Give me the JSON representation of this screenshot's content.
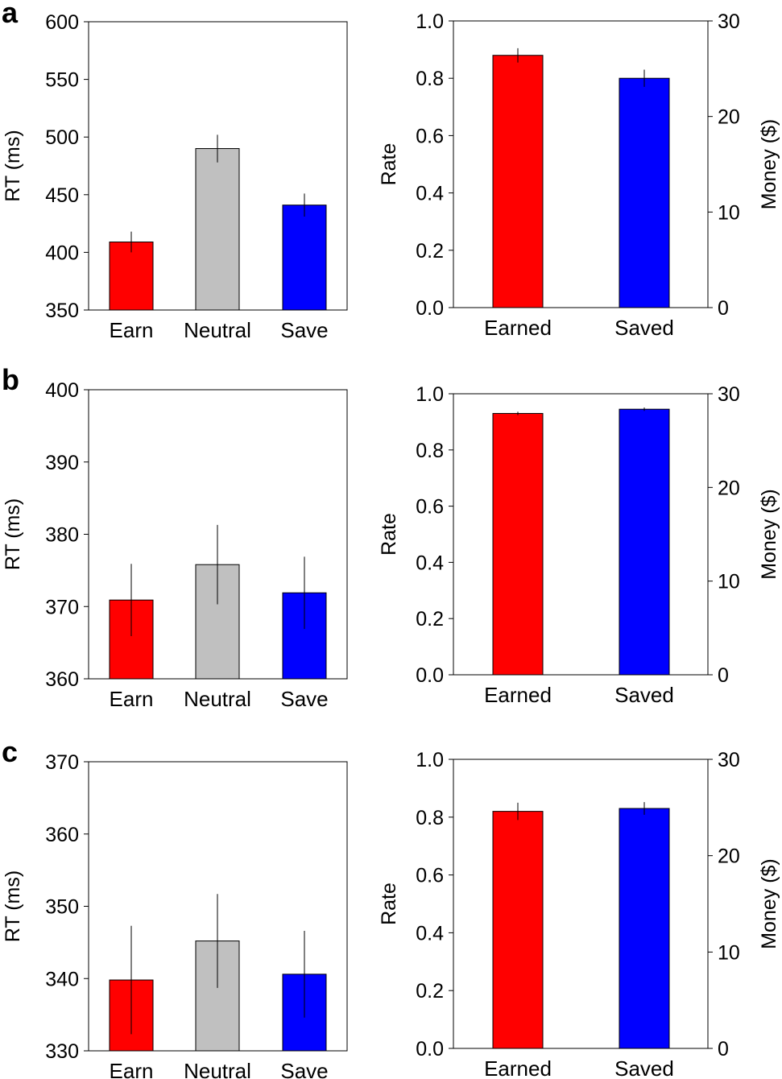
{
  "chart_data": [
    {
      "panel": "a",
      "type": "bar",
      "ylabel": "RT (ms)",
      "categories": [
        "Earn",
        "Neutral",
        "Save"
      ],
      "values": [
        409,
        490,
        441
      ],
      "errors": [
        9,
        12,
        10
      ],
      "colors": [
        "#ff0000",
        "#c0c0c0",
        "#0000ff"
      ],
      "ylim": [
        350,
        600
      ],
      "yticks": [
        "350",
        "400",
        "450",
        "500",
        "550",
        "600"
      ]
    },
    {
      "panel": "a",
      "type": "bar",
      "ylabel": "Rate",
      "y2label": "Money ($)",
      "categories": [
        "Earned",
        "Saved"
      ],
      "values": [
        0.88,
        0.8
      ],
      "errors": [
        0.025,
        0.03
      ],
      "colors": [
        "#ff0000",
        "#0000ff"
      ],
      "ylim": [
        0,
        1.0
      ],
      "yticks": [
        "0.0",
        "0.2",
        "0.4",
        "0.6",
        "0.8",
        "1.0"
      ],
      "y2lim": [
        0,
        30
      ],
      "y2ticks": [
        "0",
        "10",
        "20",
        "30"
      ]
    },
    {
      "panel": "b",
      "type": "bar",
      "ylabel": "RT (ms)",
      "categories": [
        "Earn",
        "Neutral",
        "Save"
      ],
      "values": [
        370.9,
        375.8,
        371.9
      ],
      "errors": [
        5,
        5.5,
        5
      ],
      "colors": [
        "#ff0000",
        "#c0c0c0",
        "#0000ff"
      ],
      "ylim": [
        360,
        400
      ],
      "yticks": [
        "360",
        "370",
        "380",
        "390",
        "400"
      ]
    },
    {
      "panel": "b",
      "type": "bar",
      "ylabel": "Rate",
      "y2label": "Money ($)",
      "categories": [
        "Earned",
        "Saved"
      ],
      "values": [
        0.93,
        0.945
      ],
      "errors": [
        0.006,
        0.006
      ],
      "colors": [
        "#ff0000",
        "#0000ff"
      ],
      "ylim": [
        0,
        1.0
      ],
      "yticks": [
        "0.0",
        "0.2",
        "0.4",
        "0.6",
        "0.8",
        "1.0"
      ],
      "y2lim": [
        0,
        30
      ],
      "y2ticks": [
        "0",
        "10",
        "20",
        "30"
      ]
    },
    {
      "panel": "c",
      "type": "bar",
      "ylabel": "RT (ms)",
      "categories": [
        "Earn",
        "Neutral",
        "Save"
      ],
      "values": [
        339.8,
        345.2,
        340.6
      ],
      "errors": [
        7.5,
        6.5,
        6
      ],
      "colors": [
        "#ff0000",
        "#c0c0c0",
        "#0000ff"
      ],
      "ylim": [
        330,
        370
      ],
      "yticks": [
        "330",
        "340",
        "350",
        "360",
        "370"
      ]
    },
    {
      "panel": "c",
      "type": "bar",
      "ylabel": "Rate",
      "y2label": "Money ($)",
      "categories": [
        "Earned",
        "Saved"
      ],
      "values": [
        0.82,
        0.83
      ],
      "errors": [
        0.03,
        0.022
      ],
      "colors": [
        "#ff0000",
        "#0000ff"
      ],
      "ylim": [
        0,
        1.0
      ],
      "yticks": [
        "0.0",
        "0.2",
        "0.4",
        "0.6",
        "0.8",
        "1.0"
      ],
      "y2lim": [
        0,
        30
      ],
      "y2ticks": [
        "0",
        "10",
        "20",
        "30"
      ]
    }
  ]
}
